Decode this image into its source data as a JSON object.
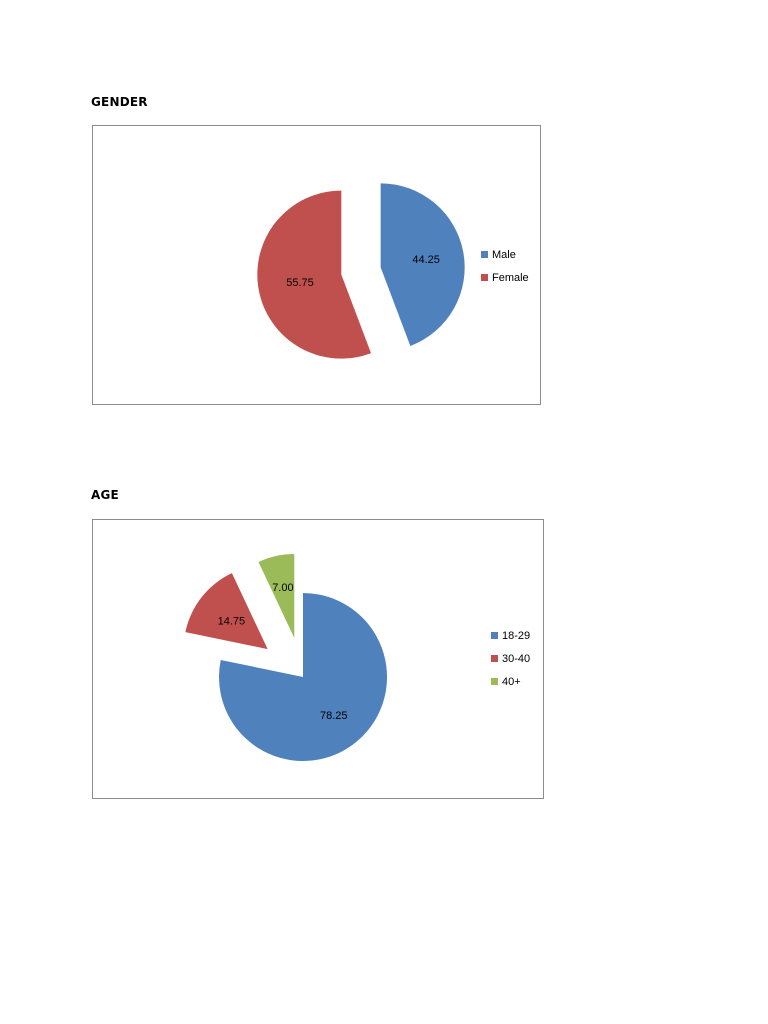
{
  "chart_data": [
    {
      "type": "pie",
      "title": "GENDER",
      "categories": [
        "Male",
        "Female"
      ],
      "values": [
        44.25,
        55.75
      ],
      "data_labels": [
        "44.25",
        "55.75"
      ],
      "colors": [
        "#4f81bd",
        "#c0504d"
      ],
      "exploded": true,
      "legend": "right"
    },
    {
      "type": "pie",
      "title": "AGE",
      "categories": [
        "18-29",
        "30-40",
        "40+"
      ],
      "values": [
        78.25,
        14.75,
        7.0
      ],
      "data_labels": [
        "78.25",
        "14.75",
        "7.00"
      ],
      "colors": [
        "#4f81bd",
        "#c0504d",
        "#9bbb59"
      ],
      "exploded": true,
      "legend": "right"
    }
  ]
}
